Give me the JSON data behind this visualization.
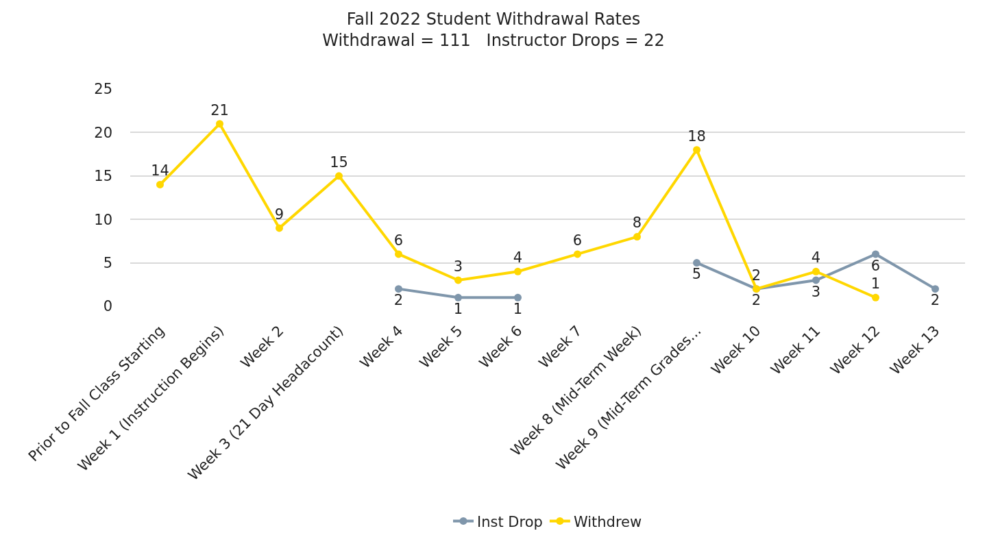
{
  "chart_data": {
    "type": "line",
    "title": "Fall 2022 Student Withdrawal Rates\nWithdrawal = 111   Instructor Drops = 22",
    "categories": [
      "Prior to Fall Class Starting",
      "Week 1 (Instruction Begins)",
      "Week 2",
      "Week 3 (21 Day Headacount)",
      "Week 4",
      "Week 5",
      "Week 6",
      "Week 7",
      "Week 8 (Mid-Term Week)",
      "Week 9 (Mid-Term Grades...",
      "Week 10",
      "Week 11",
      "Week 12",
      "Week 13"
    ],
    "series": [
      {
        "name": "Inst Drop",
        "color": "#7f96ab",
        "values": [
          null,
          null,
          null,
          null,
          2,
          1,
          1,
          null,
          null,
          5,
          2,
          3,
          6,
          2
        ]
      },
      {
        "name": "Withdrew",
        "color": "#ffd700",
        "values": [
          14,
          21,
          9,
          15,
          6,
          3,
          4,
          6,
          8,
          18,
          2,
          4,
          1,
          null
        ]
      }
    ],
    "ylim": [
      0,
      25
    ],
    "yticks": [
      0,
      5,
      10,
      15,
      20,
      25
    ],
    "grid": "y",
    "legend": "bottom",
    "marker": "circle",
    "line_style": "solid",
    "data_labels": true
  }
}
